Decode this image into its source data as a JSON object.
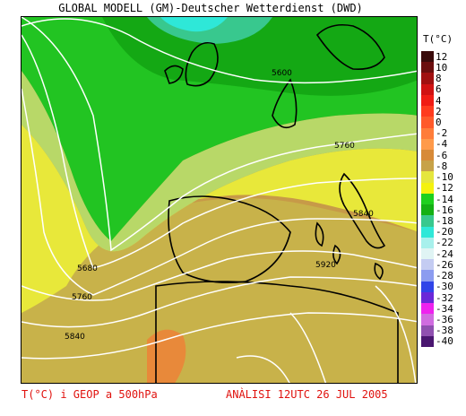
{
  "header": {
    "title": "GLOBAL MODELL (GM)-Deutscher Wetterdienst (DWD)"
  },
  "legend": {
    "title": "T(°C)",
    "entries": [
      {
        "label": "12",
        "color": "#3a0b0b"
      },
      {
        "label": "10",
        "color": "#6b0e0e"
      },
      {
        "label": "8",
        "color": "#a01010"
      },
      {
        "label": "6",
        "color": "#d01212"
      },
      {
        "label": "4",
        "color": "#f01c14"
      },
      {
        "label": "2",
        "color": "#ff3b1e"
      },
      {
        "label": "0",
        "color": "#ff5a2a"
      },
      {
        "label": "-2",
        "color": "#ff7d3a"
      },
      {
        "label": "-4",
        "color": "#ff9a4a"
      },
      {
        "label": "-6",
        "color": "#d78a38"
      },
      {
        "label": "-8",
        "color": "#c7a248"
      },
      {
        "label": "-10",
        "color": "#e5e63e"
      },
      {
        "label": "-12",
        "color": "#f4f20e"
      },
      {
        "label": "-14",
        "color": "#1ed01e"
      },
      {
        "label": "-16",
        "color": "#14b014"
      },
      {
        "label": "-18",
        "color": "#38c88e"
      },
      {
        "label": "-20",
        "color": "#2ee8d8"
      },
      {
        "label": "-22",
        "color": "#a8f0ec"
      },
      {
        "label": "-24",
        "color": "#e0f4f4"
      },
      {
        "label": "-26",
        "color": "#c4ccf2"
      },
      {
        "label": "-28",
        "color": "#8c9cf0"
      },
      {
        "label": "-30",
        "color": "#3044e8"
      },
      {
        "label": "-32",
        "color": "#6a28d8"
      },
      {
        "label": "-34",
        "color": "#ee22ee"
      },
      {
        "label": "-36",
        "color": "#d06ce0"
      },
      {
        "label": "-38",
        "color": "#9050b0"
      },
      {
        "label": "-40",
        "color": "#4a1670"
      }
    ]
  },
  "contours": {
    "labels": [
      "5600",
      "5680",
      "5760",
      "5760",
      "5840",
      "5840",
      "5920"
    ]
  },
  "footer": {
    "left": "T(°C) i GEOP a 500hPa",
    "right": "ANÀLISI 12UTC 26 JUL 2005"
  }
}
